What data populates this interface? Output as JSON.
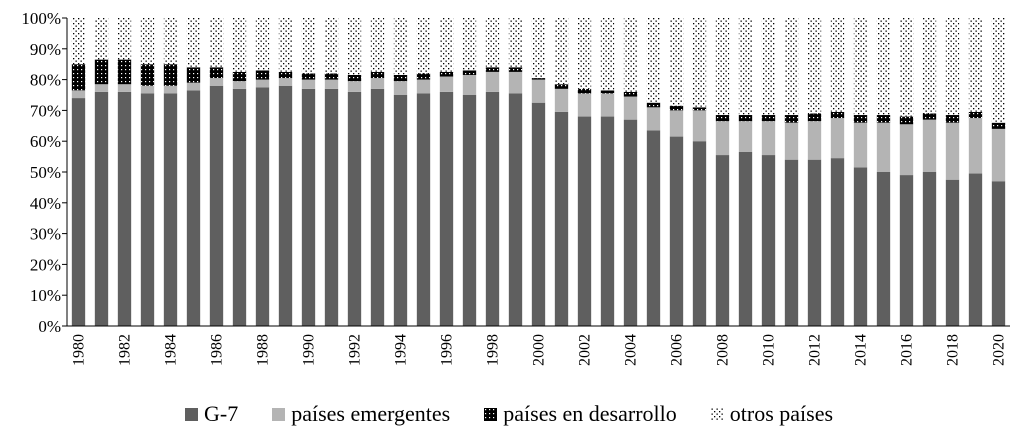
{
  "chart_data": {
    "type": "bar",
    "stacked": true,
    "title": "",
    "xlabel": "",
    "ylabel": "",
    "ylim": [
      0,
      100
    ],
    "y_ticks": [
      "0%",
      "10%",
      "20%",
      "30%",
      "40%",
      "50%",
      "60%",
      "70%",
      "80%",
      "90%",
      "100%"
    ],
    "categories": [
      "1980",
      "1981",
      "1982",
      "1983",
      "1984",
      "1985",
      "1986",
      "1987",
      "1988",
      "1989",
      "1990",
      "1991",
      "1992",
      "1993",
      "1994",
      "1995",
      "1996",
      "1997",
      "1998",
      "1999",
      "2000",
      "2001",
      "2002",
      "2003",
      "2004",
      "2005",
      "2006",
      "2007",
      "2008",
      "2009",
      "2010",
      "2011",
      "2012",
      "2013",
      "2014",
      "2015",
      "2016",
      "2017",
      "2018",
      "2019",
      "2020"
    ],
    "x_tick_labels": [
      "1980",
      "1982",
      "1984",
      "1986",
      "1988",
      "1990",
      "1992",
      "1994",
      "1996",
      "1998",
      "2000",
      "2002",
      "2004",
      "2006",
      "2008",
      "2010",
      "2012",
      "2014",
      "2016",
      "2018",
      "2020"
    ],
    "legend_position": "bottom",
    "series": [
      {
        "name": "G-7",
        "color": "#5f5f5f",
        "pattern": "solid",
        "values": [
          74,
          76,
          76,
          75.5,
          75.5,
          76.5,
          78,
          77,
          77.5,
          78,
          77,
          77,
          76,
          77,
          75,
          75.5,
          76,
          75,
          76,
          75.5,
          72.5,
          69.5,
          68,
          68,
          67,
          63.5,
          61.5,
          60,
          55.5,
          56.5,
          55.5,
          54,
          54,
          54.5,
          51.5,
          50,
          49,
          50,
          47.5,
          49.5,
          47
        ]
      },
      {
        "name": "países emergentes",
        "color": "#b4b4b4",
        "pattern": "solid",
        "values": [
          2.5,
          2.5,
          2.5,
          2.5,
          2.5,
          2.5,
          2.5,
          2.5,
          2.5,
          2.5,
          3,
          3,
          3.5,
          3.5,
          4.5,
          4.5,
          5,
          6.5,
          6.5,
          7,
          7.5,
          7.5,
          7.5,
          7.5,
          7.5,
          7.5,
          8.5,
          10,
          11,
          10,
          11,
          12,
          12.5,
          13,
          14.5,
          16,
          16.5,
          17,
          18.5,
          18,
          17
        ]
      },
      {
        "name": "países en desarrollo",
        "color": "#000000",
        "pattern": "dots-on-black",
        "values": [
          8.5,
          8,
          8,
          7,
          7,
          5,
          3.5,
          3,
          3,
          2,
          2,
          2,
          2,
          2,
          2,
          2,
          1.5,
          1.5,
          1.5,
          1.5,
          0.5,
          1.5,
          1.5,
          1,
          1.5,
          1.5,
          1.5,
          1,
          2,
          2,
          2,
          2.5,
          2.5,
          2,
          2.5,
          2.5,
          2.5,
          2,
          2.5,
          2,
          2
        ]
      },
      {
        "name": "otros países",
        "color": "#ffffff",
        "pattern": "dots-on-white",
        "values": [
          15,
          13.5,
          13.5,
          15,
          15,
          16,
          16,
          17.5,
          17,
          17.5,
          18,
          18,
          18.5,
          17.5,
          18.5,
          18,
          17.5,
          17,
          16,
          16,
          19.5,
          21.5,
          23,
          23.5,
          24,
          27.5,
          28.5,
          29,
          31.5,
          31.5,
          31.5,
          31.5,
          31,
          30.5,
          31.5,
          31.5,
          32,
          31,
          31.5,
          30.5,
          34
        ]
      }
    ]
  }
}
